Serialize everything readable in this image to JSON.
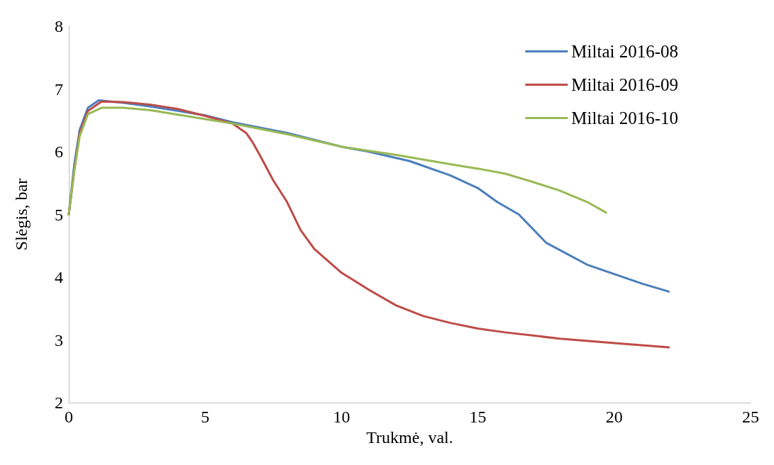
{
  "chart_data": {
    "type": "line",
    "xlabel": "Trukmė, val.",
    "ylabel": "Slėgis, bar",
    "xlim": [
      0,
      25
    ],
    "xticks": [
      0,
      5,
      10,
      15,
      20,
      25
    ],
    "ylim": [
      2,
      8
    ],
    "yticks": [
      2,
      3,
      4,
      5,
      6,
      7,
      8
    ],
    "grid": false,
    "legend": "top right",
    "marker": "none",
    "line_style": "solid",
    "series": [
      {
        "name": "Miltai 2016-08",
        "color": "#4a7ebb",
        "x": [
          0,
          0.2,
          0.4,
          0.7,
          1.1,
          2,
          3,
          5,
          6,
          8,
          10,
          11,
          12.5,
          14,
          15,
          15.7,
          16.5,
          17.5,
          19,
          20,
          21,
          22
        ],
        "values": [
          5.0,
          5.8,
          6.35,
          6.7,
          6.82,
          6.78,
          6.72,
          6.58,
          6.47,
          6.3,
          6.08,
          6.0,
          5.85,
          5.62,
          5.42,
          5.2,
          5.0,
          4.55,
          4.2,
          4.05,
          3.9,
          3.77
        ]
      },
      {
        "name": "Miltai 2016-09",
        "color": "#be4b48",
        "x": [
          0,
          0.2,
          0.4,
          0.7,
          1.2,
          2,
          3,
          4,
          5,
          6,
          6.5,
          6.74,
          7,
          7.5,
          8,
          8.5,
          9,
          10,
          11,
          12,
          13,
          14,
          15,
          16,
          18,
          20,
          22
        ],
        "values": [
          5.0,
          5.7,
          6.3,
          6.65,
          6.8,
          6.79,
          6.75,
          6.68,
          6.57,
          6.45,
          6.3,
          6.15,
          5.95,
          5.54,
          5.2,
          4.75,
          4.45,
          4.07,
          3.8,
          3.55,
          3.38,
          3.27,
          3.18,
          3.12,
          3.02,
          2.95,
          2.88
        ]
      },
      {
        "name": "Miltai 2016-10",
        "color": "#98b954",
        "x": [
          0,
          0.2,
          0.4,
          0.7,
          1.2,
          2,
          3,
          5,
          6,
          8,
          10,
          12,
          14,
          15,
          16,
          17,
          18,
          19,
          19.7
        ],
        "values": [
          5.0,
          5.7,
          6.25,
          6.6,
          6.7,
          6.7,
          6.66,
          6.52,
          6.45,
          6.28,
          6.08,
          5.95,
          5.8,
          5.73,
          5.65,
          5.52,
          5.38,
          5.2,
          5.03
        ]
      }
    ]
  }
}
